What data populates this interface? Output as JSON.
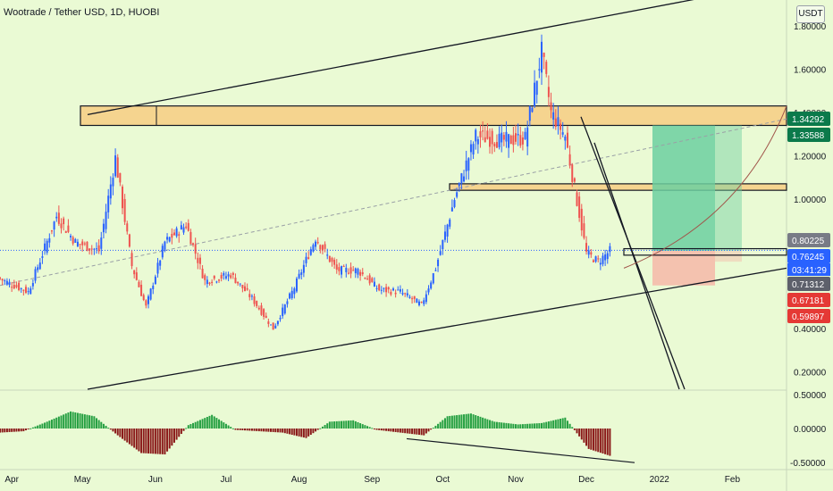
{
  "header": {
    "title": "Wootrade / Tether USD, 1D, HUOBI",
    "unit_label": "USDT"
  },
  "colors": {
    "background": "#eafad4",
    "up_candle": "#2962ff",
    "down_candle": "#ef5350",
    "histogram_up": "#26a042",
    "histogram_down": "#8b1a1a",
    "zone_fill": "#f5d48f",
    "target_zone": "#6ccfa0",
    "stop_zone": "#f6b7a8",
    "trendline": "#131722"
  },
  "chart_data": [
    {
      "type": "line",
      "title": "Wootrade / Tether USD, 1D, HUOBI",
      "ylabel": "USDT",
      "ylim": [
        0.12,
        1.92
      ],
      "grid": false,
      "y_ticks": [
        "1.80000",
        "1.60000",
        "1.40000",
        "1.20000",
        "1.00000",
        "0.80000",
        "0.60000",
        "0.40000",
        "0.20000"
      ],
      "y_tick_values": [
        1.8,
        1.6,
        1.4,
        1.2,
        1.0,
        0.8,
        0.6,
        0.4,
        0.2
      ],
      "x_ticks": [
        "Apr",
        "May",
        "Jun",
        "Jul",
        "Aug",
        "Sep",
        "Oct",
        "Nov",
        "Dec",
        "2022",
        "Feb"
      ],
      "x_tick_dates": [
        "2021-04-01",
        "2021-05-01",
        "2021-06-01",
        "2021-07-01",
        "2021-08-01",
        "2021-09-01",
        "2021-10-01",
        "2021-11-01",
        "2021-12-01",
        "2022-01-01",
        "2022-02-01"
      ],
      "series": [
        {
          "dates": [
            "2021-03-27",
            "2021-04-08",
            "2021-04-20",
            "2021-04-28",
            "2021-05-08",
            "2021-05-15",
            "2021-05-22",
            "2021-05-28",
            "2021-06-05",
            "2021-06-14",
            "2021-06-22",
            "2021-07-03",
            "2021-07-12",
            "2021-07-21",
            "2021-07-30",
            "2021-08-08",
            "2021-08-17",
            "2021-08-26",
            "2021-09-04",
            "2021-09-13",
            "2021-09-22",
            "2021-09-28",
            "2021-10-06",
            "2021-10-15",
            "2021-10-26",
            "2021-11-05",
            "2021-11-12",
            "2021-11-16",
            "2021-11-22",
            "2021-12-01",
            "2021-12-06",
            "2021-12-11"
          ],
          "values": [
            0.63,
            0.57,
            0.92,
            0.8,
            0.76,
            1.19,
            0.69,
            0.5,
            0.8,
            0.88,
            0.62,
            0.65,
            0.54,
            0.4,
            0.59,
            0.82,
            0.67,
            0.67,
            0.58,
            0.57,
            0.51,
            0.68,
            1.0,
            1.29,
            1.27,
            1.28,
            1.68,
            1.4,
            1.29,
            0.75,
            0.71,
            0.76
          ]
        }
      ],
      "annotations": [
        {
          "kind": "price_label",
          "text": "1.34292",
          "value": 1.34292,
          "color": "#0b7a4b"
        },
        {
          "kind": "price_label",
          "text": "1.33588",
          "value": 1.33588,
          "color": "#0b7a4b"
        },
        {
          "kind": "price_label",
          "text": "0.80225",
          "value": 0.80225,
          "color": "#787b86"
        },
        {
          "kind": "price_label",
          "text": "0.76245",
          "value": 0.76245,
          "color": "#2962ff"
        },
        {
          "kind": "countdown",
          "text": "03:41:29",
          "color": "#2962ff"
        },
        {
          "kind": "price_label",
          "text": "0.71312",
          "value": 0.71312,
          "color": "#5d606b"
        },
        {
          "kind": "price_label",
          "text": "0.67181",
          "value": 0.67181,
          "color": "#e53935"
        },
        {
          "kind": "price_label",
          "text": "0.59897",
          "value": 0.59897,
          "color": "#e53935"
        }
      ]
    },
    {
      "type": "bar",
      "ylabel": "",
      "ylim": [
        -0.55,
        0.55
      ],
      "y_ticks": [
        "0.50000",
        "0.00000",
        "-0.50000"
      ],
      "y_tick_values": [
        0.5,
        0.0,
        -0.5
      ],
      "series": [
        {
          "dates": [
            "2021-03-27",
            "2021-04-06",
            "2021-04-16",
            "2021-04-26",
            "2021-05-06",
            "2021-05-16",
            "2021-05-26",
            "2021-06-05",
            "2021-06-15",
            "2021-06-25",
            "2021-07-05",
            "2021-07-15",
            "2021-07-25",
            "2021-08-04",
            "2021-08-14",
            "2021-08-24",
            "2021-09-03",
            "2021-09-13",
            "2021-09-23",
            "2021-10-03",
            "2021-10-13",
            "2021-10-23",
            "2021-11-02",
            "2021-11-12",
            "2021-11-22",
            "2021-12-02",
            "2021-12-11"
          ],
          "values": [
            -0.06,
            -0.04,
            0.1,
            0.25,
            0.18,
            -0.1,
            -0.36,
            -0.38,
            0.05,
            0.2,
            -0.02,
            -0.04,
            -0.06,
            -0.14,
            0.1,
            0.12,
            -0.02,
            -0.06,
            -0.1,
            0.18,
            0.22,
            0.1,
            0.06,
            0.08,
            0.16,
            -0.3,
            -0.4
          ]
        }
      ]
    }
  ]
}
